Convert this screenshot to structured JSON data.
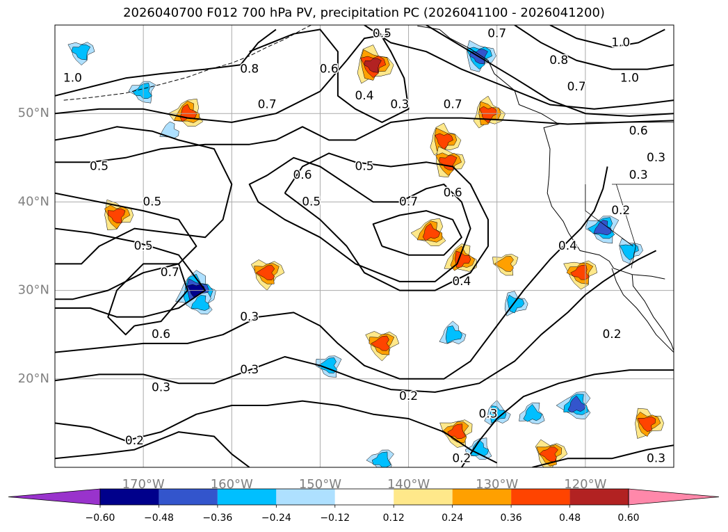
{
  "title": "2026040700 F012 700 hPa PV, precipitation PC (2026041100 - 2026041200)",
  "chart_data": {
    "type": "contour-map",
    "title": "2026040700 F012 700 hPa PV, precipitation PC (2026041100 - 2026041200)",
    "projection": "lat-lon",
    "lon_range": [
      -180,
      -110
    ],
    "lat_range": [
      10,
      60
    ],
    "grid": true,
    "lat_ticks": [
      {
        "value": 20,
        "label": "20°N"
      },
      {
        "value": 30,
        "label": "30°N"
      },
      {
        "value": 40,
        "label": "40°N"
      },
      {
        "value": 50,
        "label": "50°N"
      }
    ],
    "lon_ticks": [
      {
        "value": -170,
        "label": "170°W"
      },
      {
        "value": -160,
        "label": "160°W"
      },
      {
        "value": -150,
        "label": "150°W"
      },
      {
        "value": -140,
        "label": "140°W"
      },
      {
        "value": -130,
        "label": "130°W"
      },
      {
        "value": -120,
        "label": "120°W"
      }
    ],
    "contour_labels": [
      {
        "text": "1.0",
        "lon": -178,
        "lat": 54
      },
      {
        "text": "0.8",
        "lon": -158,
        "lat": 55
      },
      {
        "text": "0.7",
        "lon": -156,
        "lat": 51
      },
      {
        "text": "0.6",
        "lon": -149,
        "lat": 55
      },
      {
        "text": "0.5",
        "lon": -143,
        "lat": 59
      },
      {
        "text": "0.4",
        "lon": -145,
        "lat": 52
      },
      {
        "text": "0.3",
        "lon": -141,
        "lat": 51
      },
      {
        "text": "0.7",
        "lon": -130,
        "lat": 59
      },
      {
        "text": "1.0",
        "lon": -116,
        "lat": 58
      },
      {
        "text": "0.8",
        "lon": -123,
        "lat": 56
      },
      {
        "text": "0.7",
        "lon": -121,
        "lat": 53
      },
      {
        "text": "1.0",
        "lon": -115,
        "lat": 54
      },
      {
        "text": "0.7",
        "lon": -135,
        "lat": 51
      },
      {
        "text": "0.6",
        "lon": -114,
        "lat": 48
      },
      {
        "text": "0.3",
        "lon": -112,
        "lat": 45
      },
      {
        "text": "0.3",
        "lon": -114,
        "lat": 43
      },
      {
        "text": "0.2",
        "lon": -116,
        "lat": 39
      },
      {
        "text": "0.5",
        "lon": -175,
        "lat": 44
      },
      {
        "text": "0.5",
        "lon": -169,
        "lat": 40
      },
      {
        "text": "0.5",
        "lon": -170,
        "lat": 35
      },
      {
        "text": "0.7",
        "lon": -167,
        "lat": 32
      },
      {
        "text": "0.6",
        "lon": -152,
        "lat": 43
      },
      {
        "text": "0.5",
        "lon": -145,
        "lat": 44
      },
      {
        "text": "0.5",
        "lon": -151,
        "lat": 40
      },
      {
        "text": "0.7",
        "lon": -140,
        "lat": 40
      },
      {
        "text": "0.6",
        "lon": -135,
        "lat": 41
      },
      {
        "text": "0.4",
        "lon": -134,
        "lat": 31
      },
      {
        "text": "0.4",
        "lon": -122,
        "lat": 35
      },
      {
        "text": "0.6",
        "lon": -168,
        "lat": 25
      },
      {
        "text": "0.3",
        "lon": -158,
        "lat": 27
      },
      {
        "text": "0.3",
        "lon": -158,
        "lat": 21
      },
      {
        "text": "0.3",
        "lon": -168,
        "lat": 19
      },
      {
        "text": "0.2",
        "lon": -171,
        "lat": 13
      },
      {
        "text": "0.2",
        "lon": -140,
        "lat": 18
      },
      {
        "text": "0.3",
        "lon": -131,
        "lat": 16
      },
      {
        "text": "0.2",
        "lon": -134,
        "lat": 11
      },
      {
        "text": "0.2",
        "lon": -117,
        "lat": 25
      },
      {
        "text": "0.3",
        "lon": -112,
        "lat": 11
      }
    ],
    "colorbar": {
      "levels": [
        -0.6,
        -0.48,
        -0.36,
        -0.24,
        -0.12,
        0.12,
        0.24,
        0.36,
        0.48,
        0.6
      ],
      "tick_labels": [
        "−0.60",
        "−0.48",
        "−0.36",
        "−0.24",
        "−0.12",
        "0.12",
        "0.24",
        "0.36",
        "0.48",
        "0.60"
      ],
      "colors": [
        "#9933cc",
        "#00008b",
        "#3355cc",
        "#00bfff",
        "#aee0ff",
        "#ffffff",
        "#ffe88a",
        "#ffa000",
        "#ff4400",
        "#b22222",
        "#ff88aa"
      ],
      "extend": "both"
    },
    "precip_blobs": [
      {
        "lon": -164,
        "lat": 30,
        "value": -0.55
      },
      {
        "lon": -144,
        "lat": 55.5,
        "value": 0.5
      },
      {
        "lon": -132,
        "lat": 56.5,
        "value": -0.45
      },
      {
        "lon": -177,
        "lat": 57,
        "value": -0.36
      },
      {
        "lon": -118,
        "lat": 37,
        "value": -0.45
      },
      {
        "lon": -137.5,
        "lat": 36.5,
        "value": 0.36
      },
      {
        "lon": -134,
        "lat": 33.5,
        "value": 0.36
      },
      {
        "lon": -131,
        "lat": 50,
        "value": 0.36
      },
      {
        "lon": -173,
        "lat": 38.5,
        "value": 0.36
      },
      {
        "lon": -156,
        "lat": 32,
        "value": 0.36
      },
      {
        "lon": -129,
        "lat": 33,
        "value": 0.24
      },
      {
        "lon": -121,
        "lat": 17,
        "value": -0.48
      },
      {
        "lon": -126,
        "lat": 16,
        "value": -0.36
      },
      {
        "lon": -130,
        "lat": 16,
        "value": -0.36
      },
      {
        "lon": -113,
        "lat": 15,
        "value": 0.36
      },
      {
        "lon": -124,
        "lat": 11.5,
        "value": 0.36
      },
      {
        "lon": -134.5,
        "lat": 14,
        "value": 0.36
      },
      {
        "lon": -143,
        "lat": 10.8,
        "value": -0.36
      },
      {
        "lon": -132,
        "lat": 12,
        "value": -0.36
      },
      {
        "lon": -135,
        "lat": 25,
        "value": -0.36
      },
      {
        "lon": -128,
        "lat": 28.5,
        "value": -0.36
      },
      {
        "lon": -115,
        "lat": 34.5,
        "value": -0.36
      },
      {
        "lon": -120.5,
        "lat": 32,
        "value": 0.36
      },
      {
        "lon": -170,
        "lat": 52.5,
        "value": -0.36
      },
      {
        "lon": -165,
        "lat": 50,
        "value": 0.36
      },
      {
        "lon": -167,
        "lat": 48,
        "value": -0.24
      },
      {
        "lon": -136,
        "lat": 47,
        "value": 0.36
      },
      {
        "lon": -135.5,
        "lat": 44.5,
        "value": 0.36
      },
      {
        "lon": -143,
        "lat": 24,
        "value": 0.36
      },
      {
        "lon": -149,
        "lat": 21.5,
        "value": -0.36
      },
      {
        "lon": -163.5,
        "lat": 28.5,
        "value": -0.36
      }
    ]
  }
}
